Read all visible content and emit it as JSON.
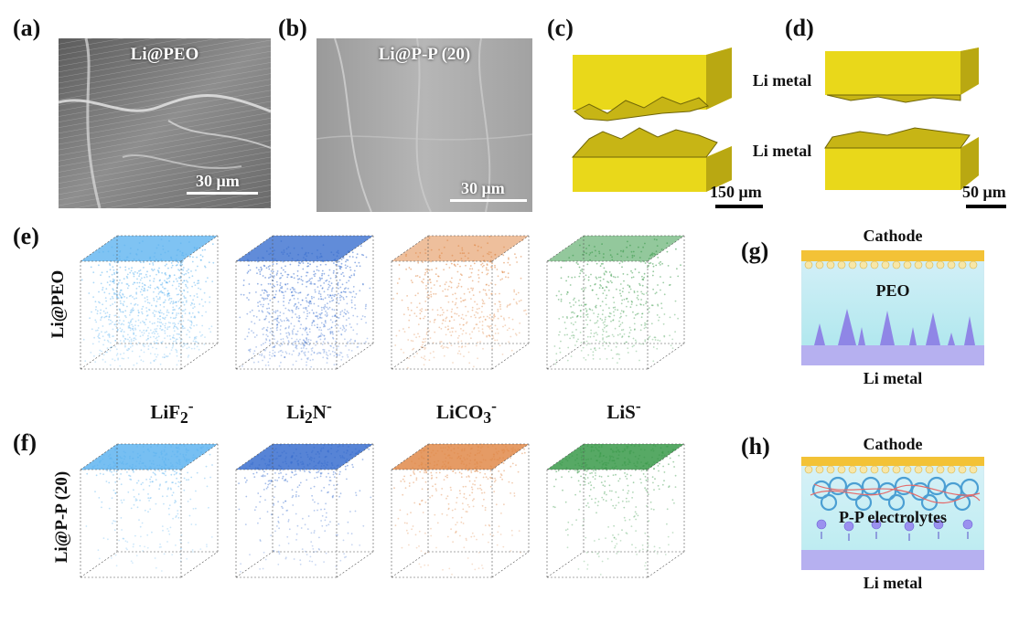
{
  "panels": {
    "a": {
      "label": "(a)",
      "title": "Li@PEO",
      "scalebar": "30 μm"
    },
    "b": {
      "label": "(b)",
      "title": "Li@P-P (20)",
      "scalebar": "30 μm"
    },
    "c": {
      "label": "(c)",
      "scalebar": "150 μm"
    },
    "d": {
      "label": "(d)",
      "scalebar": "50 μm"
    },
    "cd_labels": {
      "top": "Li metal",
      "bottom": "Li metal"
    },
    "e": {
      "label": "(e)",
      "row_label": "Li@PEO"
    },
    "f": {
      "label": "(f)",
      "row_label": "Li@P-P (20)"
    },
    "g": {
      "label": "(g)",
      "top": "Cathode",
      "middle": "PEO",
      "bottom": "Li metal"
    },
    "h": {
      "label": "(h)",
      "top": "Cathode",
      "middle": "P-P electrolytes",
      "bottom": "Li metal"
    }
  },
  "ions": [
    {
      "base": "LiF",
      "sub": "2",
      "sup": "-",
      "color": "#5fb4f0"
    },
    {
      "base": "Li",
      "sub": "2",
      "mid": "N",
      "sup": "-",
      "color": "#3a6fcf"
    },
    {
      "base": "LiCO",
      "sub": "3",
      "sup": "-",
      "color": "#e08a4a"
    },
    {
      "base": "LiS",
      "sub": "",
      "sup": "-",
      "color": "#3a9a4a"
    }
  ],
  "colors": {
    "li_yellow": "#f1e21a",
    "cathode": "#f7c948",
    "electrolyte": "#d8f3f7",
    "dendrite": "#8a7de0"
  }
}
